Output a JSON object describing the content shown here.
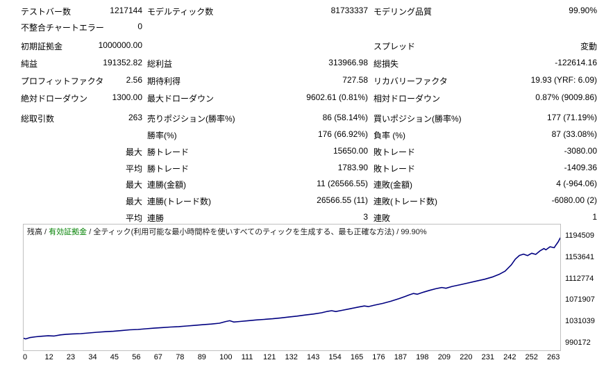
{
  "report": {
    "rows": [
      {
        "l1": "テストバー数",
        "v1": "1217144",
        "l2": "モデルティック数",
        "v2": "81733337",
        "l3": "モデリング品質",
        "v3": "99.90%"
      },
      {
        "l1": "不整合チャートエラー",
        "v1": "0",
        "l2": "",
        "v2": "",
        "l3": "",
        "v3": ""
      },
      {
        "l1": "初期証拠金",
        "v1": "1000000.00",
        "l2": "",
        "v2": "",
        "l3": "スプレッド",
        "v3": "変動"
      },
      {
        "l1": "純益",
        "v1": "191352.82",
        "l2": "総利益",
        "v2": "313966.98",
        "l3": "総損失",
        "v3": "-122614.16"
      },
      {
        "l1": "プロフィットファクタ",
        "v1": "2.56",
        "l2": "期待利得",
        "v2": "727.58",
        "l3": "リカバリーファクタ",
        "v3": "19.93 (YRF: 6.09)"
      },
      {
        "l1": "絶対ドローダウン",
        "v1": "1300.00",
        "l2": "最大ドローダウン",
        "v2": "9602.61 (0.81%)",
        "l3": "相対ドローダウン",
        "v3": "0.87% (9009.86)"
      },
      {
        "l1": "総取引数",
        "v1": "263",
        "l2": "売りポジション(勝率%)",
        "v2": "86 (58.14%)",
        "l3": "買いポジション(勝率%)",
        "v3": "177 (71.19%)"
      },
      {
        "l1": "",
        "v1": "",
        "l2": "勝率(%)",
        "v2": "176 (66.92%)",
        "l3": "負率 (%)",
        "v3": "87 (33.08%)"
      },
      {
        "l1": "",
        "v1": "最大",
        "l2": "勝トレード",
        "v2": "15650.00",
        "l3": "敗トレード",
        "v3": "-3080.00"
      },
      {
        "l1": "",
        "v1": "平均",
        "l2": "勝トレード",
        "v2": "1783.90",
        "l3": "敗トレード",
        "v3": "-1409.36"
      },
      {
        "l1": "",
        "v1": "最大",
        "l2": "連勝(金額)",
        "v2": "11 (26566.55)",
        "l3": "連敗(金額)",
        "v3": "4 (-964.06)"
      },
      {
        "l1": "",
        "v1": "最大",
        "l2": "連勝(トレード数)",
        "v2": "26566.55 (11)",
        "l3": "連敗(トレード数)",
        "v3": "-6080.00 (2)"
      },
      {
        "l1": "",
        "v1": "平均",
        "l2": "連勝",
        "v2": "3",
        "l3": "連敗",
        "v3": "1"
      }
    ]
  },
  "chart_data": {
    "type": "line",
    "title_balance": "残高",
    "title_equity": "有効証拠金",
    "title_method": "全ティック(利用可能な最小時間枠を使いすべてのティックを生成する、最も正確な方法)",
    "title_quality": "99.90%",
    "separator": " / ",
    "xlabel": "",
    "ylabel": "",
    "xlim": [
      0,
      263
    ],
    "ylim": [
      990172,
      1194509
    ],
    "y_ticks": [
      "1194509",
      "1153641",
      "1112774",
      "1071907",
      "1031039",
      "990172"
    ],
    "x_ticks": [
      "0",
      "12",
      "23",
      "34",
      "45",
      "56",
      "67",
      "78",
      "89",
      "100",
      "111",
      "121",
      "132",
      "143",
      "154",
      "165",
      "176",
      "187",
      "198",
      "209",
      "220",
      "231",
      "242",
      "252",
      "263"
    ],
    "grid": false,
    "line_color": "#000080",
    "equity_color": "#008000",
    "series": [
      {
        "name": "残高",
        "points": [
          [
            0,
            1000000
          ],
          [
            1,
            998700
          ],
          [
            3,
            1001200
          ],
          [
            6,
            1002800
          ],
          [
            9,
            1003900
          ],
          [
            12,
            1004600
          ],
          [
            15,
            1004200
          ],
          [
            18,
            1006300
          ],
          [
            21,
            1007500
          ],
          [
            24,
            1008200
          ],
          [
            28,
            1008800
          ],
          [
            32,
            1010100
          ],
          [
            36,
            1011400
          ],
          [
            40,
            1012400
          ],
          [
            44,
            1013300
          ],
          [
            48,
            1014600
          ],
          [
            52,
            1016000
          ],
          [
            56,
            1016700
          ],
          [
            60,
            1018100
          ],
          [
            64,
            1019200
          ],
          [
            68,
            1020300
          ],
          [
            72,
            1021400
          ],
          [
            76,
            1022200
          ],
          [
            80,
            1023400
          ],
          [
            84,
            1024500
          ],
          [
            88,
            1025900
          ],
          [
            92,
            1027100
          ],
          [
            96,
            1028600
          ],
          [
            99,
            1031800
          ],
          [
            101,
            1033400
          ],
          [
            103,
            1030900
          ],
          [
            106,
            1032000
          ],
          [
            110,
            1033400
          ],
          [
            114,
            1034900
          ],
          [
            118,
            1036000
          ],
          [
            122,
            1037200
          ],
          [
            126,
            1038800
          ],
          [
            130,
            1040500
          ],
          [
            134,
            1042200
          ],
          [
            138,
            1044300
          ],
          [
            142,
            1046200
          ],
          [
            146,
            1048600
          ],
          [
            149,
            1051400
          ],
          [
            151,
            1052600
          ],
          [
            153,
            1051000
          ],
          [
            156,
            1053200
          ],
          [
            160,
            1056200
          ],
          [
            164,
            1059400
          ],
          [
            167,
            1061600
          ],
          [
            169,
            1060300
          ],
          [
            172,
            1063200
          ],
          [
            176,
            1066500
          ],
          [
            180,
            1070600
          ],
          [
            184,
            1075600
          ],
          [
            187,
            1079800
          ],
          [
            189,
            1082800
          ],
          [
            191,
            1085400
          ],
          [
            193,
            1084000
          ],
          [
            196,
            1087900
          ],
          [
            199,
            1091400
          ],
          [
            202,
            1094400
          ],
          [
            205,
            1096800
          ],
          [
            207,
            1095400
          ],
          [
            210,
            1098800
          ],
          [
            214,
            1102200
          ],
          [
            218,
            1105600
          ],
          [
            222,
            1109200
          ],
          [
            226,
            1112600
          ],
          [
            230,
            1117200
          ],
          [
            233,
            1121800
          ],
          [
            236,
            1128000
          ],
          [
            239,
            1140000
          ],
          [
            241,
            1151000
          ],
          [
            243,
            1158000
          ],
          [
            245,
            1160500
          ],
          [
            247,
            1157800
          ],
          [
            249,
            1162300
          ],
          [
            251,
            1160000
          ],
          [
            253,
            1166500
          ],
          [
            255,
            1171200
          ],
          [
            256,
            1168800
          ],
          [
            258,
            1174600
          ],
          [
            260,
            1172800
          ],
          [
            261,
            1178500
          ],
          [
            262,
            1184000
          ],
          [
            263,
            1191353
          ]
        ]
      }
    ]
  }
}
